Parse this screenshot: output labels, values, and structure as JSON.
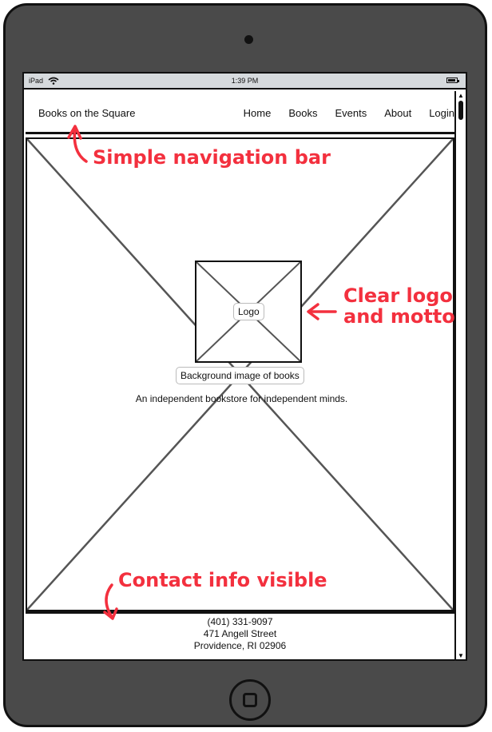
{
  "status_bar": {
    "device": "iPad",
    "time": "1:39 PM"
  },
  "navbar": {
    "brand": "Books on the Square",
    "links": [
      "Home",
      "Books",
      "Events",
      "About",
      "Login"
    ]
  },
  "hero": {
    "background_label": "Background image of books",
    "logo_label": "Logo",
    "motto": "An independent bookstore for independent minds."
  },
  "footer": {
    "phone": "(401) 331-9097",
    "street": "471 Angell Street",
    "city": "Providence, RI 02906"
  },
  "annotations": {
    "nav": "Simple navigation bar",
    "logo_line1": "Clear logo",
    "logo_line2": "and motto",
    "contact": "Contact info visible"
  },
  "colors": {
    "annotation": "#f3303e",
    "device_frame": "#4a4a4a",
    "status_bar": "#d6dadd"
  }
}
